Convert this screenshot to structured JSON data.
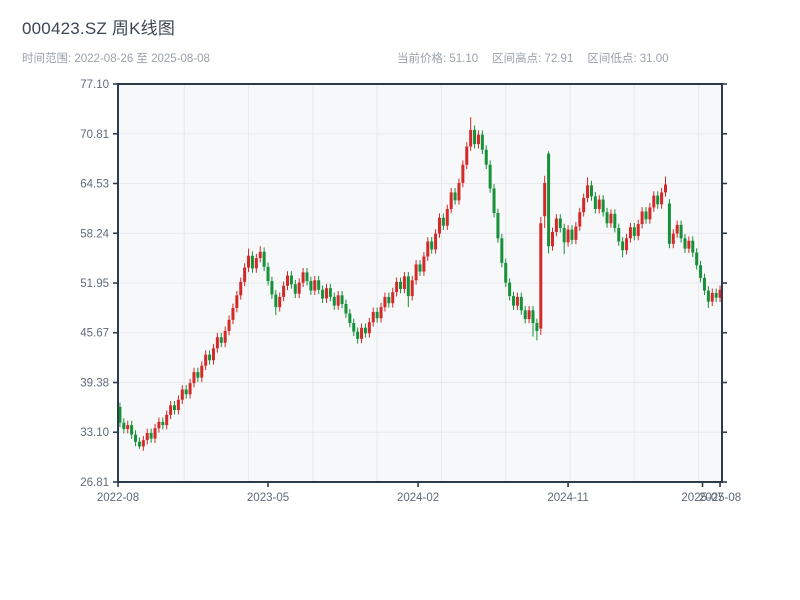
{
  "header": {
    "title": "000423.SZ 周K线图",
    "range_label": "时间范围: 2022-08-26 至 2025-08-08",
    "stats": [
      {
        "name": "current-price",
        "label": "当前价格",
        "value": "51.10"
      },
      {
        "name": "range-high",
        "label": "区间高点",
        "value": "72.91"
      },
      {
        "name": "range-low",
        "label": "区间低点",
        "value": "31.00"
      }
    ]
  },
  "chart_data": {
    "type": "candlestick",
    "symbol": "000423.SZ",
    "period": "weekly",
    "start_date": "2022-08-26",
    "end_date": "2025-08-08",
    "current_price": 51.1,
    "range_high": 72.91,
    "range_low": 31.0,
    "ylim": [
      26.81,
      77.1
    ],
    "y_ticks": [
      "77.10",
      "70.81",
      "64.53",
      "58.24",
      "51.95",
      "45.67",
      "39.38",
      "33.10",
      "26.81"
    ],
    "x_ticks": [
      {
        "label": "2022-08",
        "week": 0
      },
      {
        "label": "2023-05",
        "week": 38.5
      },
      {
        "label": "2024-02",
        "week": 77
      },
      {
        "label": "2024-11",
        "week": 115.5
      },
      {
        "label": "2025-07",
        "week": 150
      },
      {
        "label": "2025-08",
        "week": 154.5
      }
    ],
    "x_grid_weeks": [
      17,
      33.5,
      50,
      66.5,
      83,
      99.5,
      116,
      132.5,
      149
    ],
    "grid": true,
    "up_color": "#d42929",
    "down_color": "#16913a",
    "spine_color": "#2d3c4d",
    "plot_bg": "#f7f8fa",
    "grid_color": "#e7e9ed",
    "tick_label_color": "#5f6b7a",
    "first_open": 36.3,
    "default_wick": 0.55,
    "closes": [
      34.3,
      33.5,
      34.0,
      32.8,
      31.9,
      31.3,
      32.1,
      33.0,
      32.3,
      33.6,
      34.4,
      34.0,
      35.3,
      36.5,
      35.9,
      37.2,
      38.5,
      37.9,
      39.3,
      40.7,
      40.0,
      41.5,
      42.9,
      42.2,
      43.7,
      45.1,
      44.4,
      45.9,
      47.3,
      48.8,
      50.4,
      52.1,
      53.9,
      55.4,
      53.8,
      55.1,
      55.9,
      54.0,
      52.2,
      50.5,
      48.9,
      50.2,
      51.6,
      52.9,
      51.8,
      50.6,
      52.0,
      53.3,
      52.2,
      51.0,
      52.3,
      51.1,
      50.0,
      51.3,
      50.2,
      49.1,
      50.4,
      49.3,
      48.1,
      46.9,
      45.8,
      44.9,
      46.3,
      45.6,
      47.0,
      48.3,
      47.5,
      48.9,
      50.2,
      49.4,
      50.8,
      52.1,
      51.2,
      52.8,
      50.3,
      52.3,
      54.3,
      53.4,
      55.3,
      57.2,
      56.2,
      58.2,
      60.2,
      59.2,
      61.3,
      63.4,
      62.4,
      64.6,
      66.9,
      69.2,
      71.3,
      69.5,
      70.7,
      68.8,
      66.9,
      63.9,
      60.8,
      57.6,
      54.5,
      52.0,
      50.3,
      49.1,
      50.2,
      48.5,
      47.4,
      48.5,
      46.9,
      45.9,
      59.5,
      64.6,
      56.6,
      58.4,
      60.1,
      58.9,
      57.1,
      58.7,
      57.4,
      59.1,
      60.9,
      62.7,
      64.3,
      62.9,
      61.3,
      62.5,
      60.9,
      59.5,
      60.7,
      58.9,
      57.2,
      56.1,
      57.6,
      59.0,
      57.9,
      59.4,
      61.0,
      60.0,
      61.5,
      63.0,
      61.9,
      63.4,
      64.4,
      56.9,
      58.2,
      59.3,
      57.6,
      56.3,
      57.3,
      55.8,
      54.2,
      52.6,
      51.0,
      49.6,
      50.7,
      50.1,
      51.1
    ],
    "specials": {
      "0": {
        "open": 36.3
      },
      "5": {
        "low": 31.0
      },
      "33": {
        "high": 56.3
      },
      "36": {
        "high": 56.6
      },
      "40": {
        "low": 47.9
      },
      "61": {
        "low": 44.3
      },
      "74": {
        "low": 48.9
      },
      "90": {
        "high": 72.91
      },
      "106": {
        "low": 45.2
      },
      "107": {
        "low": 44.7
      },
      "108": {
        "open": 46.2,
        "high": 60.3,
        "low": 45.4
      },
      "109": {
        "open": 60.4,
        "high": 65.5,
        "low": 58.9
      },
      "110": {
        "open": 68.3,
        "high": 68.6,
        "low": 55.7
      },
      "114": {
        "low": 55.6
      },
      "120": {
        "high": 65.3
      },
      "129": {
        "low": 55.2
      },
      "140": {
        "high": 65.4
      },
      "141": {
        "open": 62.0
      },
      "151": {
        "low": 48.8
      }
    }
  }
}
